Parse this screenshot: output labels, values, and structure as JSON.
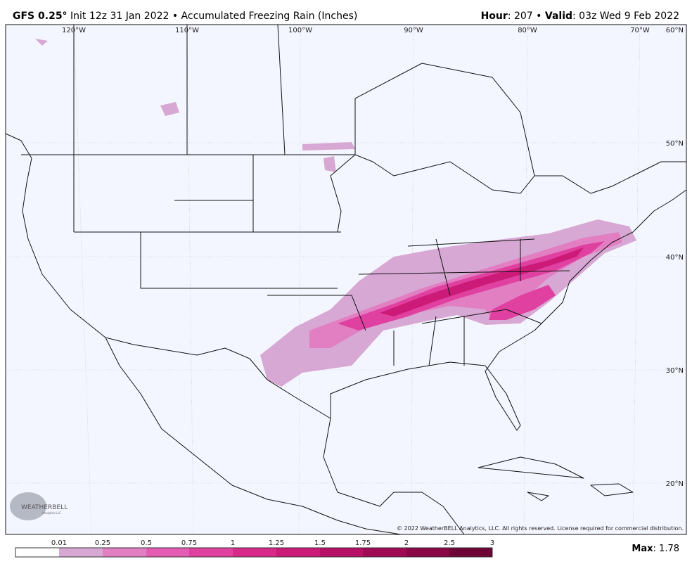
{
  "header": {
    "model": "GFS 0.25°",
    "init": "Init 12z 31 Jan 2022 • Accumulated Freezing Rain (Inches)",
    "hour_label": "Hour",
    "hour_value": ": 207 •",
    "valid_label": "Valid",
    "valid_value": ": 03z Wed 9 Feb 2022"
  },
  "longitudes": [
    "120°W",
    "110°W",
    "100°W",
    "90°W",
    "80°W",
    "70°W"
  ],
  "latitudes": [
    "60°N",
    "50°N",
    "40°N",
    "30°N",
    "20°N"
  ],
  "logo": {
    "name": "WEATHERBELL",
    "sub": "Analytics LLC"
  },
  "copyright": "© 2022 WeatherBELL Analytics, LLC. All rights reserved. License required for commercial distribution.",
  "legend": {
    "ticks": [
      "0.01",
      "0.25",
      "0.5",
      "0.75",
      "1",
      "1.25",
      "1.5",
      "1.75",
      "2",
      "2.5",
      "3"
    ]
  },
  "max": {
    "label": "Max",
    "value": ": 1.78"
  }
}
